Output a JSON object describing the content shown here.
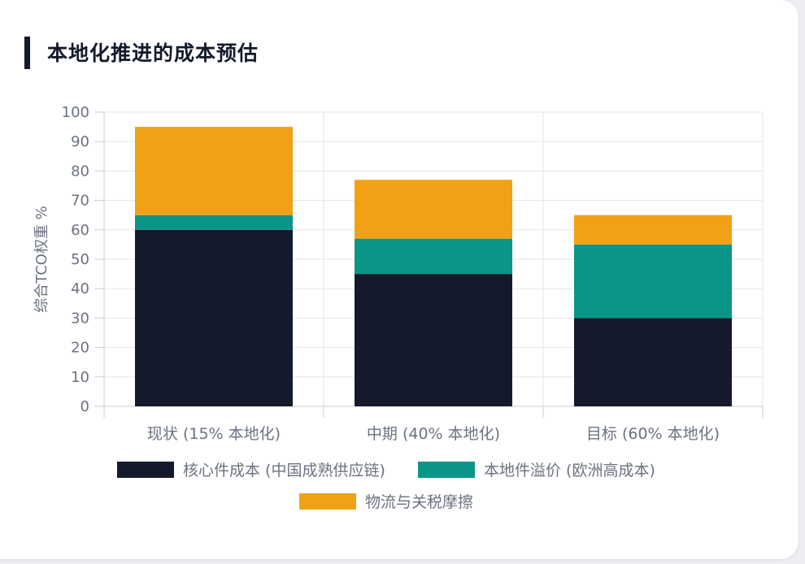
{
  "page": {
    "title": "本地化推进的成本预估"
  },
  "colors": {
    "core": "#141a2b",
    "premium": "#0b9588",
    "logistics": "#f2a116",
    "grid": "#e2e5ea",
    "axis": "#c9ced6"
  },
  "chart_data": {
    "type": "bar",
    "stacked": true,
    "title": "本地化推进的成本预估",
    "xlabel": "",
    "ylabel": "综合TCO权重 %",
    "ylim": [
      0,
      100
    ],
    "yticks": [
      0,
      10,
      20,
      30,
      40,
      50,
      60,
      70,
      80,
      90,
      100
    ],
    "categories": [
      "现状 (15% 本地化)",
      "中期 (40% 本地化)",
      "目标 (60% 本地化)"
    ],
    "series": [
      {
        "name": "核心件成本 (中国成熟供应链)",
        "color": "#141a2b",
        "values": [
          60,
          45,
          30
        ]
      },
      {
        "name": "本地件溢价 (欧洲高成本)",
        "color": "#0b9588",
        "values": [
          5,
          12,
          25
        ]
      },
      {
        "name": "物流与关税摩擦",
        "color": "#f2a116",
        "values": [
          30,
          20,
          10
        ]
      }
    ],
    "grid": true,
    "legend_position": "bottom"
  }
}
